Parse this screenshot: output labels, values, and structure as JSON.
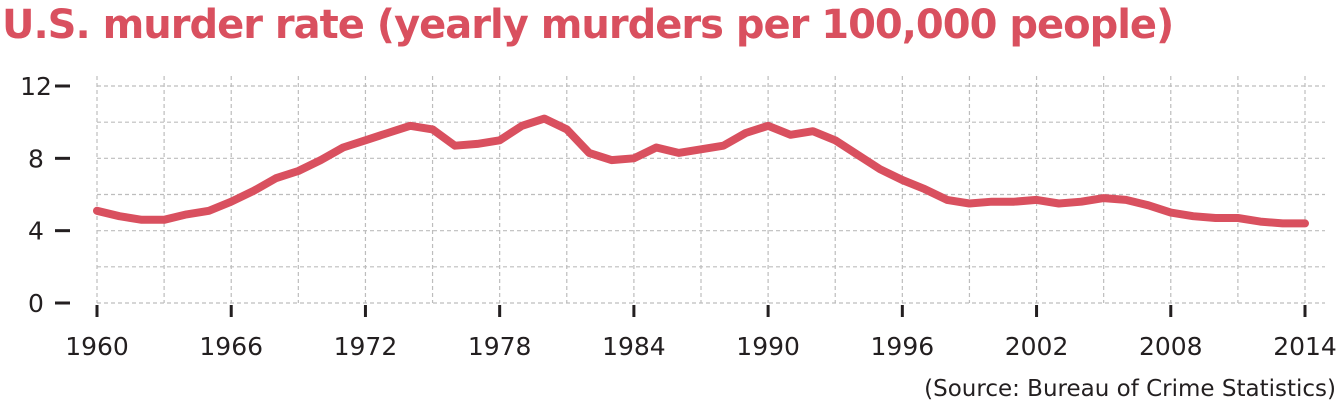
{
  "chart_data": {
    "type": "line",
    "title": "U.S. murder rate (yearly murders per 100,000 people)",
    "source": "(Source: Bureau of Crime Statistics)",
    "xlabel": "",
    "ylabel": "",
    "xlim": [
      1960,
      2014
    ],
    "ylim": [
      0,
      12
    ],
    "x_ticks": [
      "1960",
      "1966",
      "1972",
      "1978",
      "1984",
      "1990",
      "1996",
      "2002",
      "2008",
      "2014"
    ],
    "y_ticks": [
      "0",
      "4",
      "8",
      "12"
    ],
    "grid": true,
    "color": "#d9505f",
    "series": [
      {
        "x": [
          1960,
          1961,
          1962,
          1963,
          1964,
          1965,
          1966,
          1967,
          1968,
          1969,
          1970,
          1971,
          1972,
          1973,
          1974,
          1975,
          1976,
          1977,
          1978,
          1979,
          1980,
          1981,
          1982,
          1983,
          1984,
          1985,
          1986,
          1987,
          1988,
          1989,
          1990,
          1991,
          1992,
          1993,
          1994,
          1995,
          1996,
          1997,
          1998,
          1999,
          2000,
          2001,
          2002,
          2003,
          2004,
          2005,
          2006,
          2007,
          2008,
          2009,
          2010,
          2011,
          2012,
          2013,
          2014
        ],
        "values": [
          5.1,
          4.8,
          4.6,
          4.6,
          4.9,
          5.1,
          5.6,
          6.2,
          6.9,
          7.3,
          7.9,
          8.6,
          9.0,
          9.4,
          9.8,
          9.6,
          8.7,
          8.8,
          9.0,
          9.8,
          10.2,
          9.6,
          8.3,
          7.9,
          8.0,
          8.6,
          8.3,
          8.5,
          8.7,
          9.4,
          9.8,
          9.3,
          9.5,
          9.0,
          8.2,
          7.4,
          6.8,
          6.3,
          5.7,
          5.5,
          5.6,
          5.6,
          5.7,
          5.5,
          5.6,
          5.8,
          5.7,
          5.4,
          5.0,
          4.8,
          4.7,
          4.7,
          4.5,
          4.4,
          4.4
        ]
      }
    ]
  }
}
